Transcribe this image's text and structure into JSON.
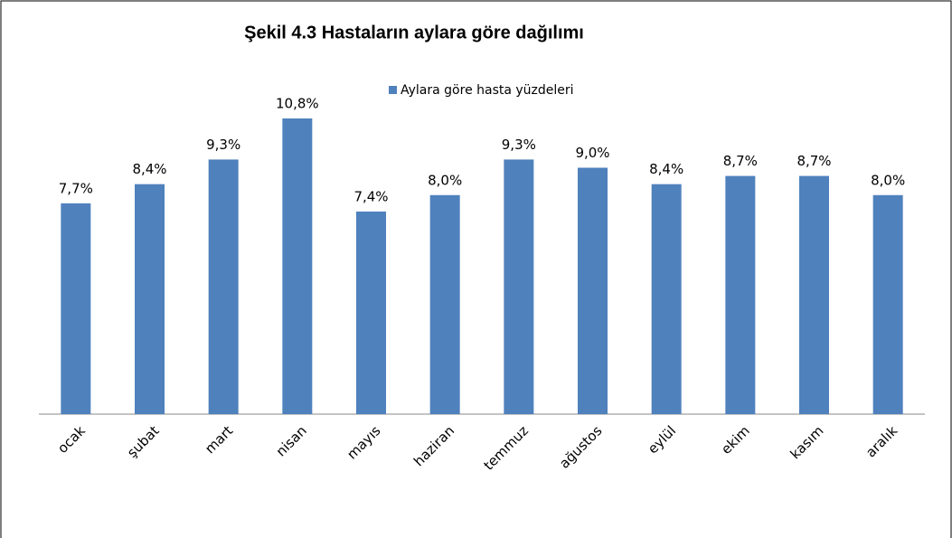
{
  "chart_data": {
    "type": "bar",
    "title": "Şekil 4.3 Hastaların aylara göre dağılımı",
    "categories": [
      "ocak",
      "şubat",
      "mart",
      "nisan",
      "mayıs",
      "haziran",
      "temmuz",
      "ağustos",
      "eylül",
      "ekim",
      "kasım",
      "aralık"
    ],
    "series": [
      {
        "name": "Aylara göre hasta yüzdeleri",
        "color": "#4f81bd",
        "values": [
          7.7,
          8.4,
          9.3,
          10.8,
          7.4,
          8.0,
          9.3,
          9.0,
          8.4,
          8.7,
          8.7,
          8.0
        ],
        "value_labels": [
          "7,7%",
          "8,4%",
          "9,3%",
          "10,8%",
          "7,4%",
          "8,0%",
          "9,3%",
          "9,0%",
          "8,4%",
          "8,7%",
          "8,7%",
          "8,0%"
        ]
      }
    ],
    "legend": "top"
  }
}
